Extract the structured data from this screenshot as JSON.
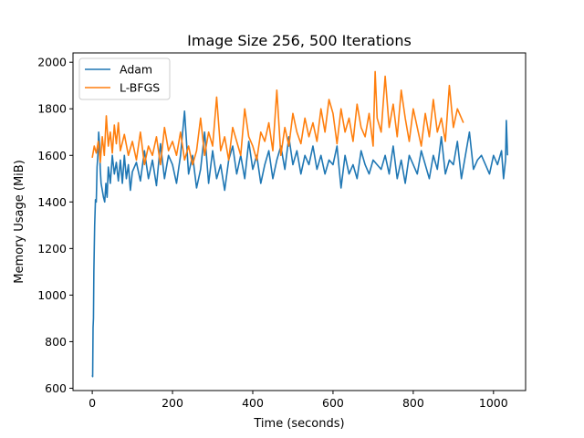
{
  "chart_data": {
    "type": "line",
    "title": "Image Size 256, 500 Iterations",
    "xlabel": "Time (seconds)",
    "ylabel": "Memory Usage (MiB)",
    "xlim": [
      -48,
      1080
    ],
    "ylim": [
      590,
      2040
    ],
    "xticks": [
      0,
      200,
      400,
      600,
      800,
      1000
    ],
    "yticks": [
      600,
      800,
      1000,
      1200,
      1400,
      1600,
      1800,
      2000
    ],
    "grid": false,
    "legend_position": "top-left",
    "series": [
      {
        "name": "Adam",
        "color": "#1f77b4",
        "x": [
          0,
          1,
          2,
          3,
          4,
          5,
          6,
          8,
          10,
          12,
          14,
          16,
          18,
          20,
          22,
          25,
          28,
          31,
          34,
          37,
          40,
          45,
          50,
          55,
          60,
          65,
          70,
          75,
          80,
          85,
          90,
          95,
          100,
          110,
          120,
          130,
          140,
          150,
          160,
          170,
          180,
          190,
          200,
          210,
          220,
          230,
          240,
          250,
          260,
          270,
          280,
          290,
          300,
          310,
          320,
          330,
          340,
          350,
          360,
          370,
          380,
          390,
          400,
          410,
          420,
          430,
          440,
          450,
          460,
          470,
          480,
          490,
          500,
          510,
          520,
          530,
          540,
          550,
          560,
          570,
          580,
          590,
          600,
          610,
          620,
          630,
          640,
          650,
          660,
          670,
          680,
          690,
          700,
          710,
          720,
          730,
          740,
          750,
          760,
          770,
          780,
          790,
          800,
          810,
          820,
          830,
          840,
          850,
          860,
          870,
          880,
          890,
          900,
          910,
          920,
          930,
          940,
          950,
          960,
          970,
          980,
          990,
          1000,
          1010,
          1020,
          1025,
          1030,
          1032,
          1035
        ],
        "values": [
          655,
          650,
          860,
          900,
          1100,
          1200,
          1300,
          1410,
          1400,
          1550,
          1600,
          1700,
          1650,
          1540,
          1480,
          1450,
          1420,
          1400,
          1480,
          1420,
          1550,
          1480,
          1600,
          1520,
          1570,
          1490,
          1580,
          1480,
          1600,
          1500,
          1560,
          1450,
          1530,
          1570,
          1490,
          1620,
          1500,
          1580,
          1470,
          1650,
          1500,
          1600,
          1560,
          1480,
          1600,
          1790,
          1520,
          1600,
          1460,
          1540,
          1700,
          1480,
          1620,
          1500,
          1560,
          1450,
          1580,
          1640,
          1520,
          1600,
          1500,
          1660,
          1540,
          1600,
          1480,
          1560,
          1620,
          1500,
          1580,
          1640,
          1540,
          1680,
          1560,
          1620,
          1520,
          1600,
          1560,
          1640,
          1540,
          1600,
          1520,
          1580,
          1560,
          1640,
          1460,
          1600,
          1520,
          1560,
          1500,
          1620,
          1560,
          1520,
          1580,
          1560,
          1540,
          1600,
          1520,
          1640,
          1500,
          1580,
          1480,
          1600,
          1560,
          1520,
          1620,
          1560,
          1500,
          1600,
          1540,
          1680,
          1520,
          1580,
          1560,
          1660,
          1500,
          1600,
          1700,
          1540,
          1580,
          1600,
          1560,
          1520,
          1600,
          1560,
          1620,
          1500,
          1580,
          1750,
          1600
        ]
      },
      {
        "name": "L-BFGS",
        "color": "#ff7f0e",
        "x": [
          0,
          5,
          10,
          15,
          20,
          25,
          30,
          35,
          40,
          45,
          50,
          55,
          60,
          65,
          70,
          80,
          90,
          100,
          110,
          120,
          130,
          140,
          150,
          160,
          170,
          180,
          190,
          200,
          210,
          220,
          230,
          240,
          250,
          260,
          270,
          280,
          290,
          300,
          310,
          320,
          330,
          340,
          350,
          360,
          370,
          380,
          390,
          400,
          410,
          420,
          430,
          440,
          450,
          460,
          470,
          480,
          490,
          500,
          510,
          520,
          530,
          540,
          550,
          560,
          570,
          580,
          590,
          600,
          610,
          620,
          630,
          640,
          650,
          660,
          670,
          680,
          690,
          700,
          705,
          710,
          720,
          730,
          740,
          750,
          760,
          770,
          780,
          790,
          800,
          810,
          820,
          830,
          840,
          850,
          860,
          870,
          880,
          890,
          900,
          910,
          920,
          925
        ],
        "values": [
          1590,
          1640,
          1610,
          1660,
          1570,
          1680,
          1600,
          1770,
          1640,
          1700,
          1610,
          1730,
          1650,
          1740,
          1620,
          1690,
          1600,
          1660,
          1580,
          1700,
          1560,
          1640,
          1600,
          1680,
          1560,
          1720,
          1620,
          1660,
          1600,
          1700,
          1580,
          1640,
          1560,
          1620,
          1760,
          1600,
          1700,
          1640,
          1850,
          1620,
          1680,
          1580,
          1720,
          1660,
          1600,
          1800,
          1680,
          1640,
          1580,
          1700,
          1660,
          1740,
          1620,
          1880,
          1600,
          1720,
          1640,
          1780,
          1700,
          1650,
          1760,
          1680,
          1740,
          1660,
          1800,
          1700,
          1840,
          1780,
          1650,
          1800,
          1700,
          1760,
          1660,
          1820,
          1720,
          1680,
          1780,
          1640,
          1960,
          1760,
          1700,
          1940,
          1720,
          1820,
          1680,
          1880,
          1760,
          1660,
          1800,
          1720,
          1640,
          1780,
          1680,
          1840,
          1700,
          1760,
          1660,
          1900,
          1720,
          1800,
          1760,
          1740
        ]
      }
    ]
  }
}
